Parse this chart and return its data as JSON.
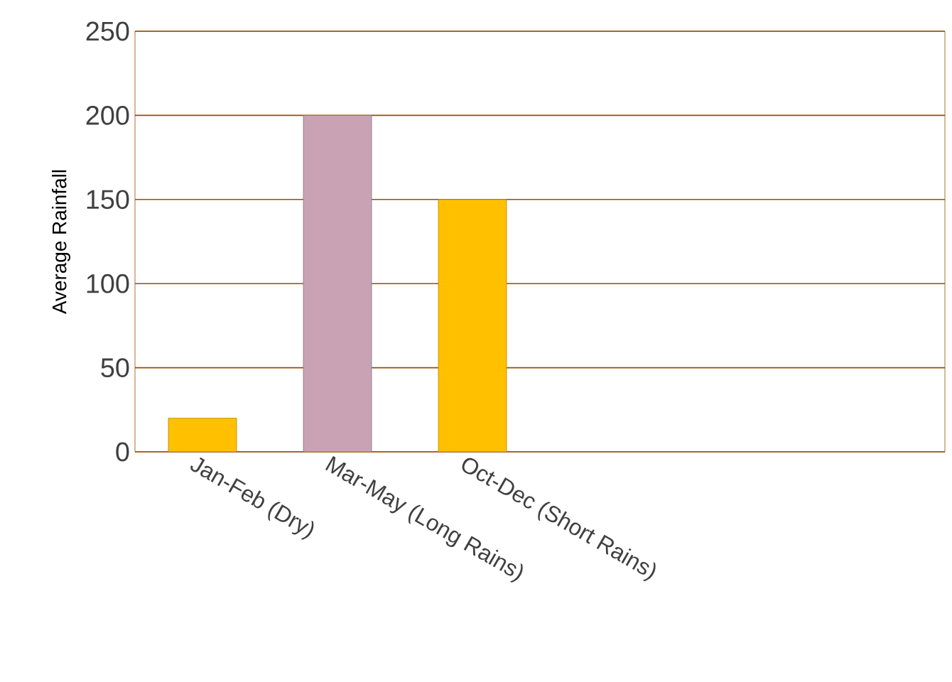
{
  "chart_data": {
    "type": "bar",
    "ylabel": "Average Rainfall",
    "categories": [
      "Jan-Feb (Dry)",
      "Mar-May (Long Rains)",
      "Oct-Dec (Short Rains)",
      null,
      null,
      null
    ],
    "values": [
      20,
      200,
      150,
      null,
      null,
      null
    ],
    "colors": [
      "#ffc000",
      "#c9a3b4",
      "#ffc000",
      null,
      null,
      null
    ],
    "ylim": [
      0,
      250
    ],
    "yticks": [
      0,
      50,
      100,
      150,
      200,
      250
    ],
    "grid": "y"
  }
}
